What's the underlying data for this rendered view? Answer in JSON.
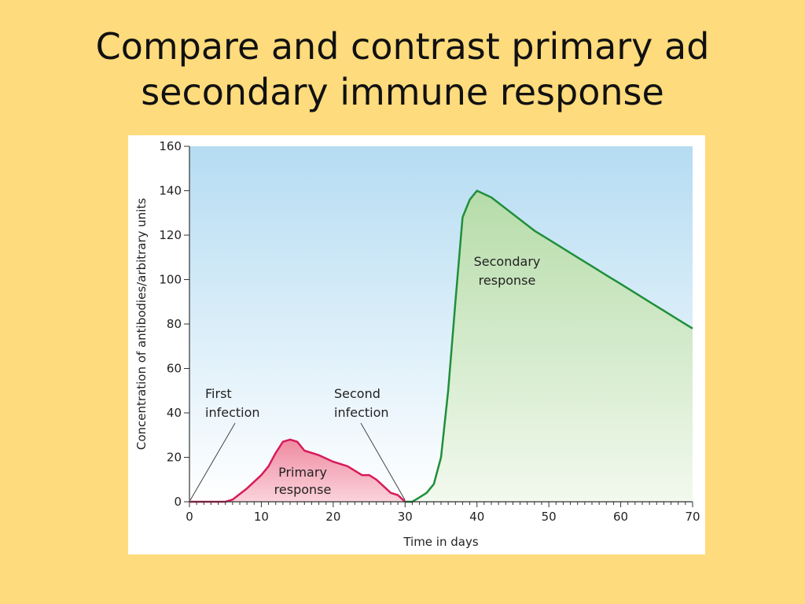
{
  "slide": {
    "title_line1": "Compare and contrast primary ad",
    "title_line2": "secondary immune response"
  },
  "chart_data": {
    "type": "area",
    "xlabel": "Time in days",
    "ylabel": "Concentration of antibodies/arbitrary units",
    "xlim": [
      0,
      70
    ],
    "ylim": [
      0,
      160
    ],
    "x_ticks": [
      0,
      10,
      20,
      30,
      40,
      50,
      60,
      70
    ],
    "y_ticks": [
      0,
      20,
      40,
      60,
      80,
      100,
      120,
      140,
      160
    ],
    "grid": false,
    "series": [
      {
        "label": "Primary response",
        "color": "#d81b5a",
        "fill": "#f5a3b4",
        "points": [
          [
            0,
            0
          ],
          [
            5,
            0
          ],
          [
            6,
            1
          ],
          [
            8,
            6
          ],
          [
            10,
            12
          ],
          [
            11,
            16
          ],
          [
            12,
            22
          ],
          [
            13,
            27
          ],
          [
            14,
            28
          ],
          [
            15,
            27
          ],
          [
            16,
            23
          ],
          [
            18,
            21
          ],
          [
            20,
            18
          ],
          [
            22,
            16
          ],
          [
            24,
            12
          ],
          [
            25,
            12
          ],
          [
            26,
            10
          ],
          [
            27,
            7
          ],
          [
            28,
            4
          ],
          [
            29,
            3
          ],
          [
            30,
            0
          ]
        ]
      },
      {
        "label": "Secondary response",
        "color": "#1f8f3a",
        "fill": "#c9e6c0",
        "points": [
          [
            30,
            0
          ],
          [
            31,
            0
          ],
          [
            32,
            2
          ],
          [
            33,
            4
          ],
          [
            34,
            8
          ],
          [
            35,
            20
          ],
          [
            36,
            50
          ],
          [
            37,
            90
          ],
          [
            38,
            128
          ],
          [
            39,
            136
          ],
          [
            40,
            140
          ],
          [
            42,
            137
          ],
          [
            44,
            132
          ],
          [
            46,
            127
          ],
          [
            48,
            122
          ],
          [
            50,
            118
          ],
          [
            52,
            114
          ],
          [
            54,
            110
          ],
          [
            56,
            106
          ],
          [
            58,
            102
          ],
          [
            60,
            98
          ],
          [
            62,
            94
          ],
          [
            64,
            90
          ],
          [
            66,
            86
          ],
          [
            68,
            82
          ],
          [
            70,
            78
          ]
        ]
      }
    ],
    "annotations": {
      "first_infection": [
        "First",
        "infection"
      ],
      "second_infection": [
        "Second",
        "infection"
      ],
      "primary_label": [
        "Primary",
        "response"
      ],
      "secondary_label": [
        "Secondary",
        "response"
      ]
    },
    "colors": {
      "sky_top": "#b5dcf2",
      "sky_bottom": "#ffffff",
      "axis": "#333333"
    }
  }
}
